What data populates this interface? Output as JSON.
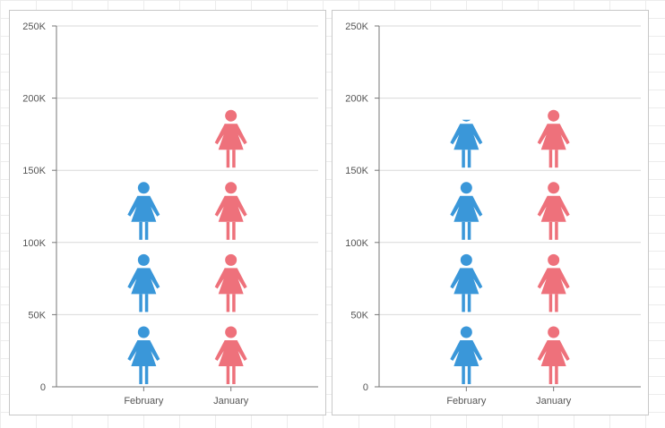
{
  "colors": {
    "blue": "#3a97d9",
    "red": "#ee717b",
    "grid": "#d9d9d9",
    "axis": "#777777"
  },
  "chart_data": [
    {
      "type": "bar",
      "variant": "pictograph",
      "icon": "woman-icon",
      "categories": [
        "February",
        "January"
      ],
      "icon_value": 50000,
      "series": [
        {
          "values": [
            150000,
            200000
          ],
          "colors": [
            "#3a97d9",
            "#ee717b"
          ]
        }
      ],
      "ylim": [
        0,
        250000
      ],
      "yticks": [
        "0",
        "50K",
        "100K",
        "150K",
        "200K",
        "250K"
      ],
      "ytick_values": [
        0,
        50000,
        100000,
        150000,
        200000,
        250000
      ],
      "title": "",
      "xlabel": "",
      "ylabel": "",
      "grid": true
    },
    {
      "type": "bar",
      "variant": "pictograph",
      "icon": "woman-icon",
      "categories": [
        "February",
        "January"
      ],
      "icon_value": 50000,
      "series": [
        {
          "values": [
            185000,
            200000
          ],
          "colors": [
            "#3a97d9",
            "#ee717b"
          ]
        }
      ],
      "ylim": [
        0,
        250000
      ],
      "yticks": [
        "0",
        "50K",
        "100K",
        "150K",
        "200K",
        "250K"
      ],
      "ytick_values": [
        0,
        50000,
        100000,
        150000,
        200000,
        250000
      ],
      "title": "",
      "xlabel": "",
      "ylabel": "",
      "grid": true
    }
  ]
}
